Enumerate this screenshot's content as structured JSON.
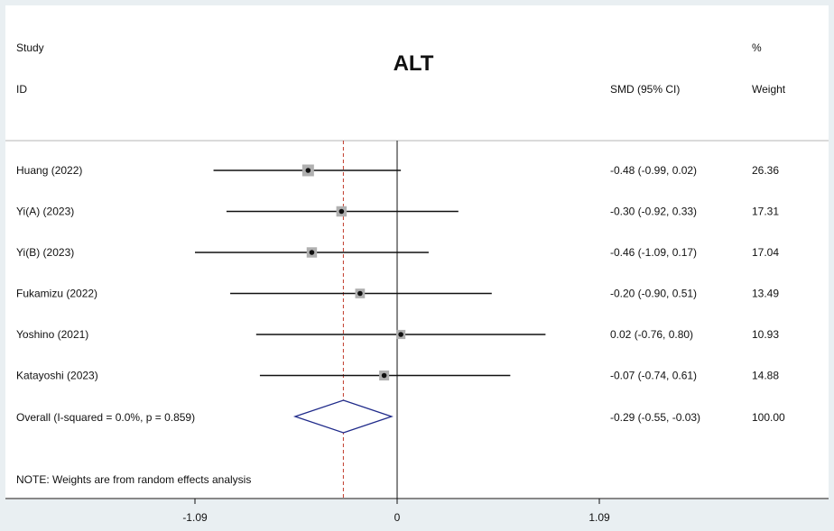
{
  "chart_data": {
    "type": "forest",
    "title": "ALT",
    "headers": {
      "study_line1": "Study",
      "study_line2": "ID",
      "effect": "SMD (95% CI)",
      "weight_line1": "%",
      "weight_line2": "Weight"
    },
    "studies": [
      {
        "label": "Huang (2022)",
        "smd": -0.48,
        "ci_low": -0.99,
        "ci_high": 0.02,
        "ci_text": "-0.48 (-0.99, 0.02)",
        "weight": "26.36"
      },
      {
        "label": "Yi(A) (2023)",
        "smd": -0.3,
        "ci_low": -0.92,
        "ci_high": 0.33,
        "ci_text": "-0.30 (-0.92, 0.33)",
        "weight": "17.31"
      },
      {
        "label": "Yi(B) (2023)",
        "smd": -0.46,
        "ci_low": -1.09,
        "ci_high": 0.17,
        "ci_text": "-0.46 (-1.09, 0.17)",
        "weight": "17.04"
      },
      {
        "label": "Fukamizu (2022)",
        "smd": -0.2,
        "ci_low": -0.9,
        "ci_high": 0.51,
        "ci_text": "-0.20 (-0.90, 0.51)",
        "weight": "13.49"
      },
      {
        "label": "Yoshino (2021)",
        "smd": 0.02,
        "ci_low": -0.76,
        "ci_high": 0.8,
        "ci_text": "0.02 (-0.76, 0.80)",
        "weight": "10.93"
      },
      {
        "label": "Katayoshi (2023)",
        "smd": -0.07,
        "ci_low": -0.74,
        "ci_high": 0.61,
        "ci_text": "-0.07 (-0.74, 0.61)",
        "weight": "14.88"
      }
    ],
    "overall": {
      "label": "Overall  (I-squared = 0.0%, p = 0.859)",
      "smd": -0.29,
      "ci_low": -0.55,
      "ci_high": -0.03,
      "ci_text": "-0.29 (-0.55, -0.03)",
      "weight": "100.00"
    },
    "note": "NOTE: Weights are from random effects analysis",
    "x_ticks": [
      {
        "value": -1.09,
        "label": "-1.09"
      },
      {
        "value": 0,
        "label": "0"
      },
      {
        "value": 1.09,
        "label": "1.09"
      }
    ],
    "null_line": 0,
    "colors": {
      "background": "#e9eff2",
      "panel": "#ffffff",
      "line": "#111111",
      "marker_box": "#b0b0b0",
      "diamond": "#1f2a8a",
      "overall_line": "#c0392b"
    }
  }
}
